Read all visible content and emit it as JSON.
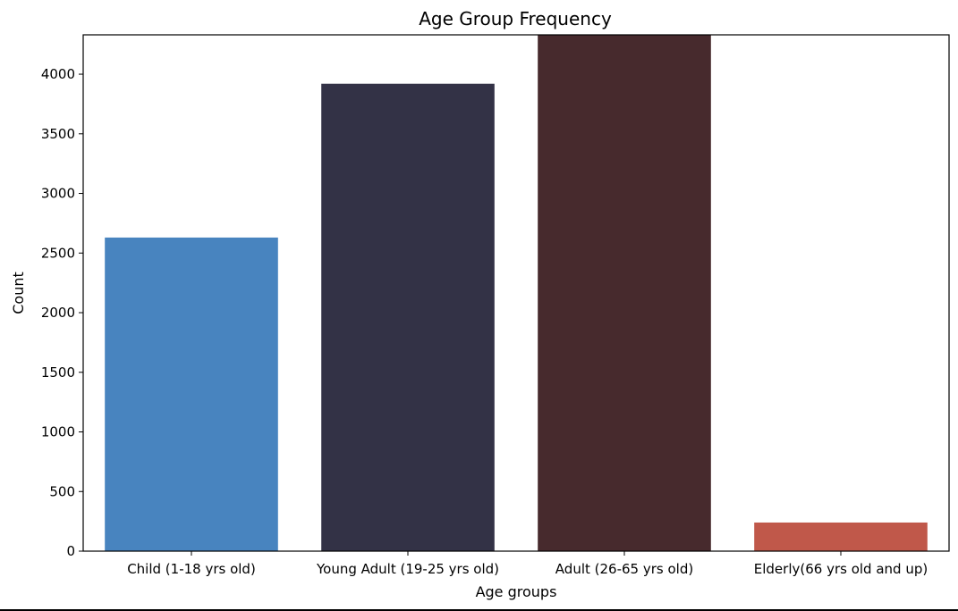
{
  "chart_data": {
    "type": "bar",
    "title": "Age Group Frequency",
    "xlabel": "Age groups",
    "ylabel": "Count",
    "categories": [
      "Child (1-18 yrs old)",
      "Young Adult (19-25 yrs old)",
      "Adult (26-65 yrs old)",
      "Elderly(66 yrs old and up)"
    ],
    "values": [
      2630,
      3920,
      4330,
      240
    ],
    "colors": [
      "#4884bf",
      "#333246",
      "#472a2d",
      "#c0584a"
    ],
    "ylim": [
      0,
      4330
    ],
    "yticks": [
      0,
      500,
      1000,
      1500,
      2000,
      2500,
      3000,
      3500,
      4000
    ],
    "grid": false,
    "legend": "none"
  }
}
